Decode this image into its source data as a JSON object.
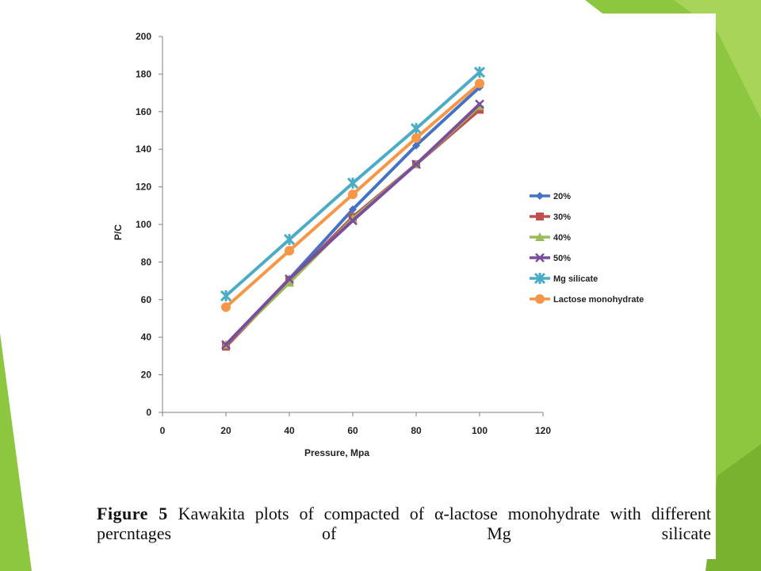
{
  "chart_data": {
    "type": "line",
    "title": "",
    "xlabel": "Pressure, Mpa",
    "ylabel": "P/C",
    "xlim": [
      0,
      120
    ],
    "ylim": [
      0,
      200
    ],
    "xticks": [
      0,
      20,
      40,
      60,
      80,
      100,
      120
    ],
    "yticks": [
      0,
      20,
      40,
      60,
      80,
      100,
      120,
      140,
      160,
      180,
      200
    ],
    "grid": false,
    "legend_position": "right",
    "x": [
      20,
      40,
      60,
      80,
      100
    ],
    "series": [
      {
        "name": "20%",
        "color": "#4472c4",
        "marker": "diamond",
        "values": [
          36,
          71,
          108,
          142,
          173
        ]
      },
      {
        "name": "30%",
        "color": "#c0504d",
        "marker": "square",
        "values": [
          35,
          70,
          104,
          132,
          161
        ]
      },
      {
        "name": "40%",
        "color": "#9bbb59",
        "marker": "triangle",
        "values": [
          36,
          69,
          103,
          132,
          163
        ]
      },
      {
        "name": "50%",
        "color": "#7a4e9a",
        "marker": "x",
        "values": [
          36,
          71,
          102,
          132,
          164
        ]
      },
      {
        "name": "Mg silicate",
        "color": "#4bacc6",
        "marker": "star",
        "values": [
          62,
          92,
          122,
          151,
          181
        ]
      },
      {
        "name": "Lactose monohydrate",
        "color": "#f79646",
        "marker": "circle",
        "values": [
          56,
          86,
          116,
          146,
          175
        ]
      }
    ]
  },
  "caption": {
    "lead": "Figure 5",
    "text": "Kawakita plots of compacted  of α-lactose monohydrate with different percntages of Mg silicate"
  }
}
